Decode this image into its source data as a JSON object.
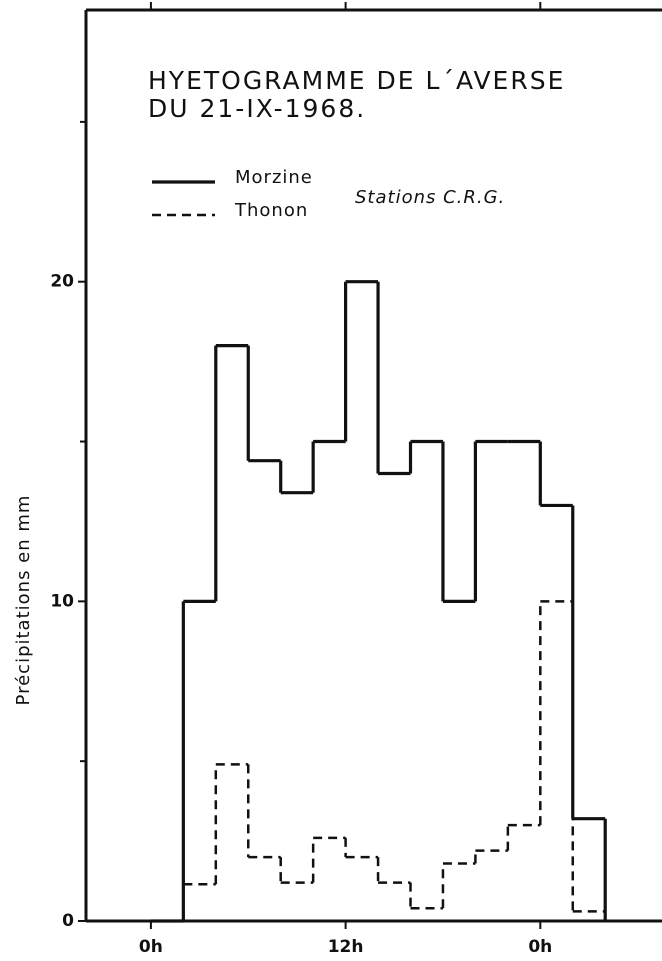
{
  "chart_data": {
    "type": "histogram",
    "title": "HYETOGRAMME DE L´AVERSE",
    "subtitle": "DU 21-IX-1968.",
    "annotation": "Stations C.R.G.",
    "ylabel": "Précipitations en mm",
    "bins": [
      0,
      2,
      4,
      6,
      8,
      10,
      12,
      14,
      16,
      18,
      20,
      22,
      24,
      26,
      28
    ],
    "series": [
      {
        "name": "Morzine",
        "color": "#111111",
        "dash": false,
        "values": [
          0,
          10,
          18,
          14.4,
          13.4,
          15,
          20,
          14,
          15,
          10,
          15,
          15,
          13,
          3.2
        ]
      },
      {
        "name": "Thonon",
        "color": "#111111",
        "dash": true,
        "values": [
          0,
          1.15,
          4.9,
          2,
          1.2,
          2.6,
          2,
          1.2,
          0.4,
          1.8,
          2.2,
          3,
          10,
          0.3
        ]
      }
    ],
    "xlim": [
      -4,
      31.5
    ],
    "xticks": [
      {
        "value": 0,
        "label": "0h"
      },
      {
        "value": 12,
        "label": "12h"
      },
      {
        "value": 24,
        "label": "0h"
      }
    ],
    "ylim": [
      0,
      28.5
    ],
    "yticks": [
      0,
      10,
      20
    ],
    "yminor": [
      5,
      15,
      25
    ]
  }
}
